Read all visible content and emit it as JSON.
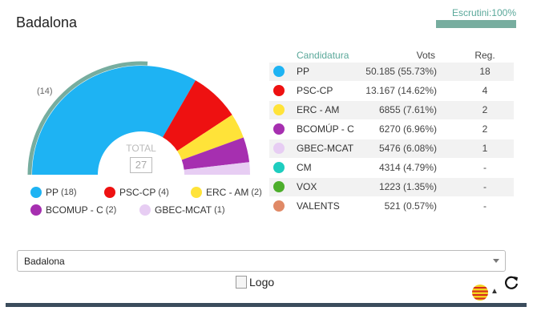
{
  "header": {
    "title": "Badalona",
    "escrutini_label": "Escrutini:100%",
    "escrutini_percent": 100,
    "accent_color": "#77ad9f"
  },
  "chart_data": {
    "type": "pie",
    "variant": "half-donut-parliament",
    "total_label": "TOTAL",
    "total_seats": "27",
    "majority_marker_label": "(14)",
    "majority_seats": 14,
    "segments": [
      {
        "name": "PP",
        "seats": 18,
        "color": "#1eb3f3"
      },
      {
        "name": "PSC-CP",
        "seats": 4,
        "color": "#ee1111"
      },
      {
        "name": "ERC - AM",
        "seats": 2,
        "color": "#ffe339"
      },
      {
        "name": "BCOMUP - C",
        "seats": 2,
        "color": "#a62fb0"
      },
      {
        "name": "GBEC-MCAT",
        "seats": 1,
        "color": "#e7cdf3"
      }
    ]
  },
  "legend": {
    "items": [
      {
        "label": "PP",
        "count": "(18)",
        "color": "#1eb3f3"
      },
      {
        "label": "PSC-CP",
        "count": "(4)",
        "color": "#ee1111"
      },
      {
        "label": "ERC - AM",
        "count": "(2)",
        "color": "#ffe339"
      },
      {
        "label": "BCOMUP - C",
        "count": "(2)",
        "color": "#a62fb0"
      },
      {
        "label": "GBEC-MCAT",
        "count": "(1)",
        "color": "#e7cdf3"
      }
    ]
  },
  "table": {
    "headers": {
      "candidatura": "Candidatura",
      "vots": "Vots",
      "reg": "Reg."
    },
    "rows": [
      {
        "name": "PP",
        "votes": "50.185 (55.73%)",
        "seats": "18",
        "color": "#1eb3f3"
      },
      {
        "name": "PSC-CP",
        "votes": "13.167 (14.62%)",
        "seats": "4",
        "color": "#ee1111"
      },
      {
        "name": "ERC - AM",
        "votes": "6855 (7.61%)",
        "seats": "2",
        "color": "#ffe339"
      },
      {
        "name": "BCOMÚP - C",
        "votes": "6270 (6.96%)",
        "seats": "2",
        "color": "#a62fb0"
      },
      {
        "name": "GBEC-MCAT",
        "votes": "5476 (6.08%)",
        "seats": "1",
        "color": "#e7cdf3"
      },
      {
        "name": "CM",
        "votes": "4314 (4.79%)",
        "seats": "-",
        "color": "#1ecdbf"
      },
      {
        "name": "VOX",
        "votes": "1223 (1.35%)",
        "seats": "-",
        "color": "#4cae2b"
      },
      {
        "name": "VALENTS",
        "votes": "521 (0.57%)",
        "seats": "-",
        "color": "#e08966"
      }
    ]
  },
  "select": {
    "value": "Badalona"
  },
  "footer": {
    "logo_alt": "Logo",
    "flag_icon": "catalan-flag-icon",
    "refresh_icon": "refresh-icon"
  }
}
